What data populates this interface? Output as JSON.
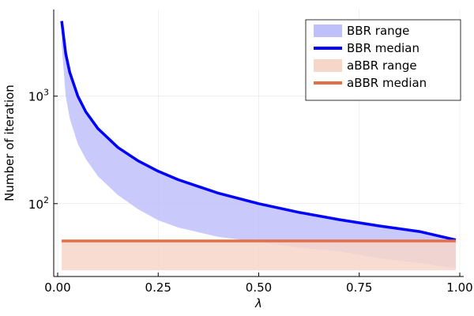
{
  "chart_data": {
    "type": "area",
    "xlabel": "λ",
    "ylabel": "Number of iteration",
    "xlim": [
      0.0,
      1.0
    ],
    "ylim": [
      21,
      6400
    ],
    "y_scale": "log10",
    "grid": true,
    "legend_position": "top-right",
    "x_ticks": [
      {
        "value": 0.0,
        "label": "0.00"
      },
      {
        "value": 0.25,
        "label": "0.25"
      },
      {
        "value": 0.5,
        "label": "0.50"
      },
      {
        "value": 0.75,
        "label": "0.75"
      },
      {
        "value": 1.0,
        "label": "1.00"
      }
    ],
    "y_ticks": [
      {
        "value": 100,
        "base": "10",
        "exp": "2"
      },
      {
        "value": 1000,
        "base": "10",
        "exp": "3"
      }
    ],
    "x": [
      0.01,
      0.02,
      0.03,
      0.05,
      0.07,
      0.1,
      0.15,
      0.2,
      0.25,
      0.3,
      0.4,
      0.5,
      0.6,
      0.7,
      0.8,
      0.9,
      0.99
    ],
    "series": [
      {
        "name": "BBR range",
        "kind": "band",
        "color": "#bfbffa",
        "lower": [
          3000,
          1000,
          620,
          360,
          260,
          180,
          120,
          89,
          70,
          60,
          49,
          44,
          39,
          36,
          31,
          28,
          25
        ],
        "upper": [
          5000,
          2480,
          1660,
          1000,
          715,
          500,
          333,
          250,
          200,
          167,
          125,
          100,
          83,
          71,
          62,
          55,
          46
        ]
      },
      {
        "name": "BBR median",
        "kind": "line",
        "color": "#0000ff",
        "values": [
          5000,
          2480,
          1660,
          1000,
          715,
          500,
          333,
          250,
          200,
          167,
          125,
          100,
          83,
          71,
          62,
          55,
          46
        ]
      },
      {
        "name": "aBBR range",
        "kind": "band",
        "color": "#f7d6ca",
        "lower": [
          24,
          24,
          24,
          24,
          24,
          24,
          24,
          24,
          24,
          24,
          24,
          24,
          24,
          24,
          24,
          24,
          24
        ],
        "upper": [
          45,
          45,
          45,
          45,
          45,
          45,
          45,
          45,
          45,
          45,
          45,
          45,
          45,
          45,
          45,
          45,
          45
        ]
      },
      {
        "name": "aBBR median",
        "kind": "line",
        "color": "#e26f46",
        "values": [
          45,
          45,
          45,
          45,
          45,
          45,
          45,
          45,
          45,
          45,
          45,
          45,
          45,
          45,
          45,
          45,
          45
        ]
      }
    ]
  }
}
